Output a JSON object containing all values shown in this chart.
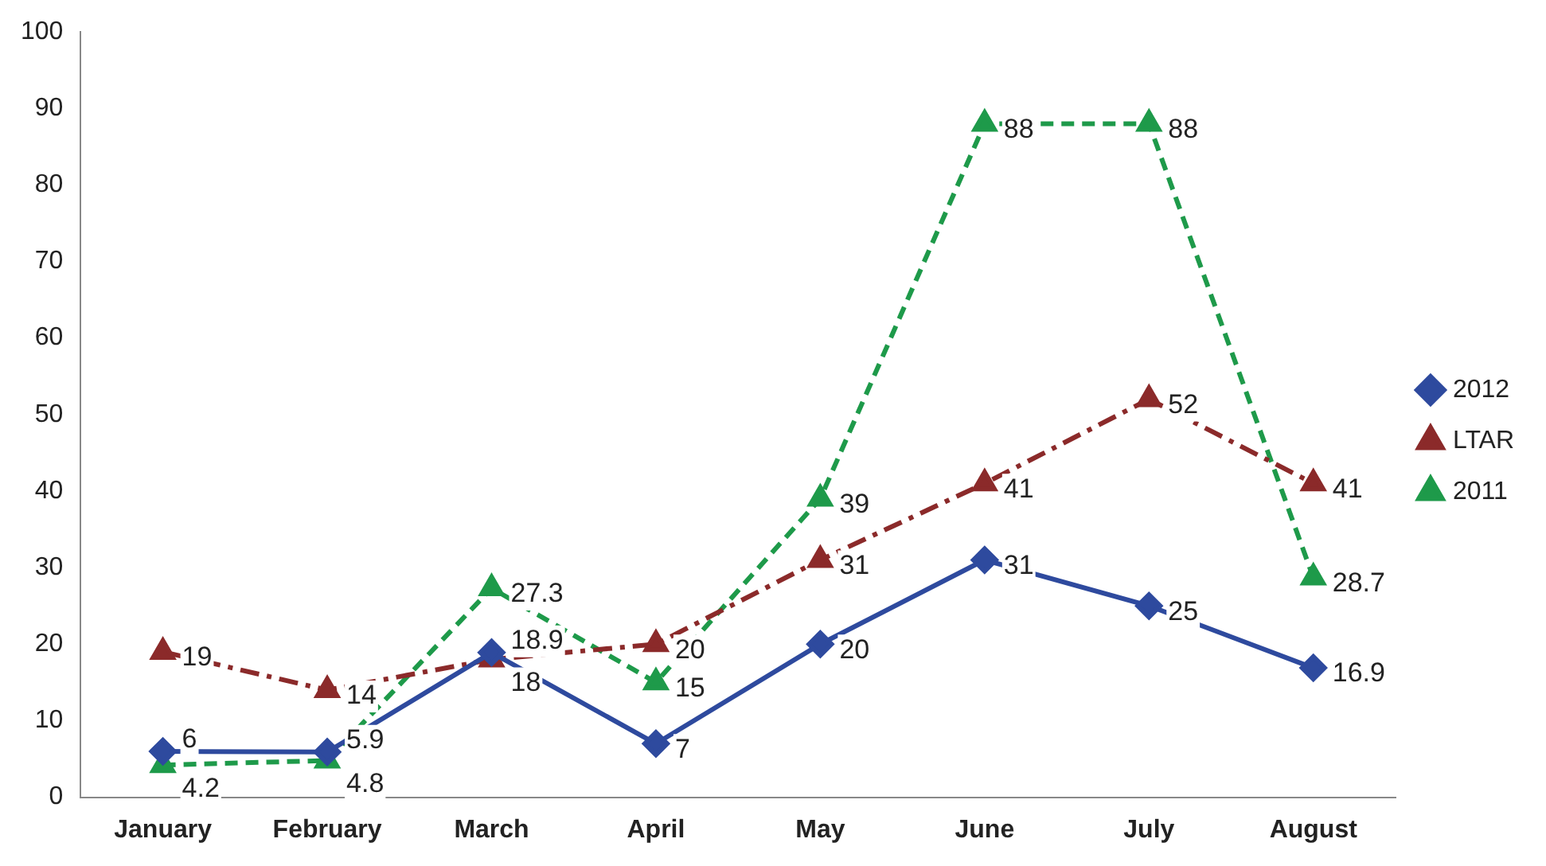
{
  "chart_data": {
    "type": "line",
    "categories": [
      "January",
      "February",
      "March",
      "April",
      "May",
      "June",
      "July",
      "August"
    ],
    "series": [
      {
        "name": "2012",
        "color": "#2e4a9e",
        "marker": "diamond",
        "line_style": "solid",
        "values": [
          6,
          5.9,
          18.9,
          7,
          20,
          31,
          25,
          16.9
        ]
      },
      {
        "name": "LTAR",
        "color": "#8b2a2a",
        "marker": "triangle",
        "line_style": "dashdot",
        "values": [
          19,
          14,
          18,
          20,
          31,
          41,
          52,
          41
        ]
      },
      {
        "name": "2011",
        "color": "#1e9a4a",
        "marker": "triangle",
        "line_style": "dashed",
        "values": [
          4.2,
          4.8,
          27.3,
          15,
          39,
          88,
          88,
          28.7
        ]
      }
    ],
    "ylim": [
      0,
      100
    ],
    "yticks": [
      0,
      10,
      20,
      30,
      40,
      50,
      60,
      70,
      80,
      90,
      100
    ],
    "grid": false,
    "legend": "right",
    "data_labels": true
  }
}
